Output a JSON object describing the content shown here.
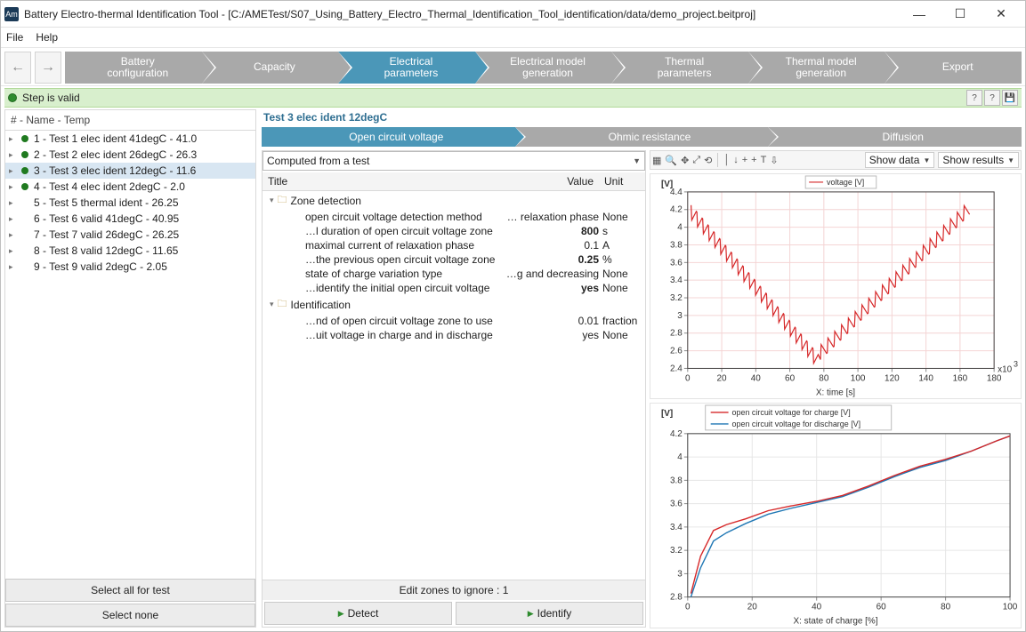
{
  "window": {
    "title": "Battery Electro-thermal Identification Tool - [C:/AMETest/S07_Using_Battery_Electro_Thermal_Identification_Tool_identification/data/demo_project.beitproj]",
    "icon_text": "Am"
  },
  "menu": [
    "File",
    "Help"
  ],
  "steps": {
    "items": [
      "Battery\nconfiguration",
      "Capacity",
      "Electrical\nparameters",
      "Electrical model\ngeneration",
      "Thermal\nparameters",
      "Thermal model\ngeneration",
      "Export"
    ],
    "active_index": 2
  },
  "status": {
    "text": "Step is valid"
  },
  "sidebar": {
    "header": "# - Name - Temp",
    "items": [
      {
        "label": "1 - Test 1 elec ident 41degC - 41.0",
        "dot": true
      },
      {
        "label": "2 - Test 2 elec ident 26degC - 26.3",
        "dot": true
      },
      {
        "label": "3 - Test 3 elec ident 12degC - 11.6",
        "dot": true,
        "selected": true
      },
      {
        "label": "4 - Test 4 elec ident 2degC - 2.0",
        "dot": true
      },
      {
        "label": "5 - Test 5 thermal ident - 26.25",
        "dot": false
      },
      {
        "label": "6 - Test 6 valid 41degC - 40.95",
        "dot": false
      },
      {
        "label": "7 - Test 7 valid 26degC - 26.25",
        "dot": false
      },
      {
        "label": "8 - Test 8 valid 12degC - 11.65",
        "dot": false
      },
      {
        "label": "9 - Test 9 valid 2degC - 2.05",
        "dot": false
      }
    ],
    "btn_select_all": "Select all for test",
    "btn_select_none": "Select none"
  },
  "main": {
    "title": "Test 3 elec ident 12degC",
    "subtabs": {
      "items": [
        "Open circuit voltage",
        "Ohmic resistance",
        "Diffusion"
      ],
      "active_index": 0
    },
    "dropdown": "Computed from a test",
    "param_columns": [
      "Title",
      "Value",
      "Unit"
    ],
    "param_groups": [
      {
        "name": "Zone detection",
        "rows": [
          {
            "title": "open circuit voltage detection method",
            "value": "… relaxation phase",
            "unit": "None"
          },
          {
            "title": "…l duration of open circuit voltage zone",
            "value": "800",
            "unit": "s",
            "bold": true
          },
          {
            "title": "maximal current of relaxation phase",
            "value": "0.1",
            "unit": "A"
          },
          {
            "title": "…the previous open circuit voltage zone",
            "value": "0.25",
            "unit": "%",
            "bold": true
          },
          {
            "title": "state of charge variation type",
            "value": "…g and decreasing",
            "unit": "None"
          },
          {
            "title": "…identify the initial open circuit voltage",
            "value": "yes",
            "unit": "None",
            "bold": true
          }
        ]
      },
      {
        "name": "Identification",
        "rows": [
          {
            "title": "…nd of open circuit voltage zone to use",
            "value": "0.01",
            "unit": "fraction"
          },
          {
            "title": "…uit voltage in charge and in discharge",
            "value": "yes",
            "unit": "None"
          }
        ]
      }
    ],
    "edit_zones_label": "Edit zones to ignore : 1",
    "btn_detect": "Detect",
    "btn_identify": "Identify"
  },
  "toolbar": {
    "show_data": "Show data",
    "show_results": "Show results"
  },
  "chart1": {
    "ylabel": "[V]",
    "legend": [
      "voltage [V]"
    ],
    "yticks": [
      2.4,
      2.6,
      2.8,
      3.0,
      3.2,
      3.4,
      3.6,
      3.8,
      4.0,
      4.2,
      4.4
    ],
    "ylim": [
      2.4,
      4.4
    ],
    "xticks": [
      0,
      20,
      40,
      60,
      80,
      100,
      120,
      140,
      160,
      180
    ],
    "xlim": [
      0,
      180
    ],
    "xlabel": "X: time [s]",
    "xunit": "x10",
    "xunit_exp": "3",
    "colors": {
      "series": "#d62728",
      "grid": "#f4d4d4"
    }
  },
  "chart2": {
    "ylabel": "[V]",
    "legend": [
      "open circuit voltage for charge [V]",
      "open circuit voltage for discharge [V]"
    ],
    "yticks": [
      2.8,
      3.0,
      3.2,
      3.4,
      3.6,
      3.8,
      4.0,
      4.2
    ],
    "ylim": [
      2.8,
      4.2
    ],
    "xticks": [
      0,
      20,
      40,
      60,
      80,
      100
    ],
    "xlim": [
      0,
      100
    ],
    "xlabel": "X: state of charge [%]",
    "colors": {
      "charge": "#d62728",
      "discharge": "#1f77b4"
    },
    "series_charge": [
      [
        1,
        2.83
      ],
      [
        4,
        3.15
      ],
      [
        8,
        3.37
      ],
      [
        12,
        3.42
      ],
      [
        18,
        3.47
      ],
      [
        25,
        3.54
      ],
      [
        32,
        3.58
      ],
      [
        40,
        3.62
      ],
      [
        48,
        3.67
      ],
      [
        56,
        3.75
      ],
      [
        64,
        3.84
      ],
      [
        72,
        3.92
      ],
      [
        80,
        3.98
      ],
      [
        88,
        4.05
      ],
      [
        96,
        4.14
      ],
      [
        100,
        4.18
      ]
    ],
    "series_discharge": [
      [
        1,
        2.8
      ],
      [
        4,
        3.05
      ],
      [
        8,
        3.28
      ],
      [
        12,
        3.35
      ],
      [
        18,
        3.43
      ],
      [
        25,
        3.51
      ],
      [
        32,
        3.56
      ],
      [
        40,
        3.61
      ],
      [
        48,
        3.66
      ],
      [
        56,
        3.74
      ],
      [
        64,
        3.83
      ],
      [
        72,
        3.91
      ],
      [
        80,
        3.97
      ],
      [
        88,
        4.05
      ],
      [
        96,
        4.14
      ],
      [
        100,
        4.18
      ]
    ]
  }
}
